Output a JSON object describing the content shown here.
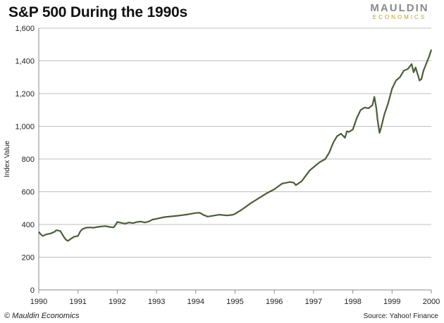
{
  "header": {
    "title": "S&P 500 During the 1990s",
    "logo_top": "MAULDIN",
    "logo_bottom": "ECONOMICS"
  },
  "footer": {
    "copyright": "© Mauldin Economics",
    "source": "Source: Yahoo! Finance"
  },
  "colors": {
    "line": "#4a5e38",
    "grid": "#bfbfbf",
    "axis": "#888888",
    "logo_gray": "#8a8a8a",
    "logo_gold": "#c99a1e"
  },
  "chart_data": {
    "type": "line",
    "title": "S&P 500 During the 1990s",
    "xlabel": "",
    "ylabel": "Index Value",
    "xlim": [
      1990,
      2000
    ],
    "ylim": [
      0,
      1600
    ],
    "yticks": [
      0,
      200,
      400,
      600,
      800,
      1000,
      1200,
      1400,
      1600
    ],
    "ytick_labels": [
      "0",
      "200",
      "400",
      "600",
      "800",
      "1,000",
      "1,200",
      "1,400",
      "1,600"
    ],
    "xticks": [
      1990,
      1991,
      1992,
      1993,
      1994,
      1995,
      1996,
      1997,
      1998,
      1999,
      2000
    ],
    "xtick_labels": [
      "1990",
      "1991",
      "1992",
      "1993",
      "1994",
      "1995",
      "1996",
      "1997",
      "1998",
      "1999",
      "2000"
    ],
    "grid": true,
    "legend": "none",
    "series": [
      {
        "name": "",
        "x": [
          1990.0,
          1990.05,
          1990.1,
          1990.2,
          1990.3,
          1990.4,
          1990.45,
          1990.55,
          1990.6,
          1990.65,
          1990.7,
          1990.75,
          1990.8,
          1990.9,
          1991.0,
          1991.05,
          1991.1,
          1991.15,
          1991.2,
          1991.3,
          1991.4,
          1991.5,
          1991.6,
          1991.7,
          1991.8,
          1991.9,
          1991.95,
          1992.0,
          1992.1,
          1992.2,
          1992.3,
          1992.4,
          1992.5,
          1992.6,
          1992.7,
          1992.8,
          1992.9,
          1993.0,
          1993.2,
          1993.4,
          1993.6,
          1993.8,
          1994.0,
          1994.1,
          1994.2,
          1994.3,
          1994.4,
          1994.6,
          1994.8,
          1994.95,
          1995.0,
          1995.2,
          1995.4,
          1995.6,
          1995.8,
          1996.0,
          1996.2,
          1996.4,
          1996.5,
          1996.55,
          1996.7,
          1996.9,
          1997.0,
          1997.15,
          1997.3,
          1997.4,
          1997.5,
          1997.6,
          1997.7,
          1997.8,
          1997.85,
          1997.9,
          1998.0,
          1998.1,
          1998.2,
          1998.3,
          1998.4,
          1998.5,
          1998.55,
          1998.6,
          1998.63,
          1998.68,
          1998.72,
          1998.8,
          1998.9,
          1999.0,
          1999.1,
          1999.2,
          1999.3,
          1999.4,
          1999.5,
          1999.55,
          1999.6,
          1999.65,
          1999.7,
          1999.75,
          1999.8,
          1999.9,
          1999.95,
          2000.0
        ],
        "values": [
          355,
          340,
          330,
          340,
          345,
          355,
          365,
          360,
          340,
          320,
          305,
          300,
          310,
          325,
          330,
          355,
          370,
          375,
          380,
          382,
          380,
          385,
          388,
          390,
          385,
          382,
          395,
          415,
          410,
          405,
          412,
          408,
          415,
          418,
          412,
          418,
          430,
          435,
          445,
          450,
          455,
          462,
          470,
          472,
          458,
          448,
          452,
          460,
          455,
          460,
          465,
          495,
          530,
          560,
          590,
          615,
          650,
          660,
          655,
          640,
          665,
          730,
          750,
          780,
          800,
          840,
          900,
          940,
          955,
          930,
          970,
          965,
          980,
          1050,
          1100,
          1115,
          1110,
          1130,
          1180,
          1110,
          1040,
          960,
          990,
          1070,
          1140,
          1230,
          1280,
          1300,
          1340,
          1350,
          1380,
          1330,
          1360,
          1320,
          1280,
          1290,
          1340,
          1400,
          1430,
          1469
        ]
      }
    ]
  }
}
